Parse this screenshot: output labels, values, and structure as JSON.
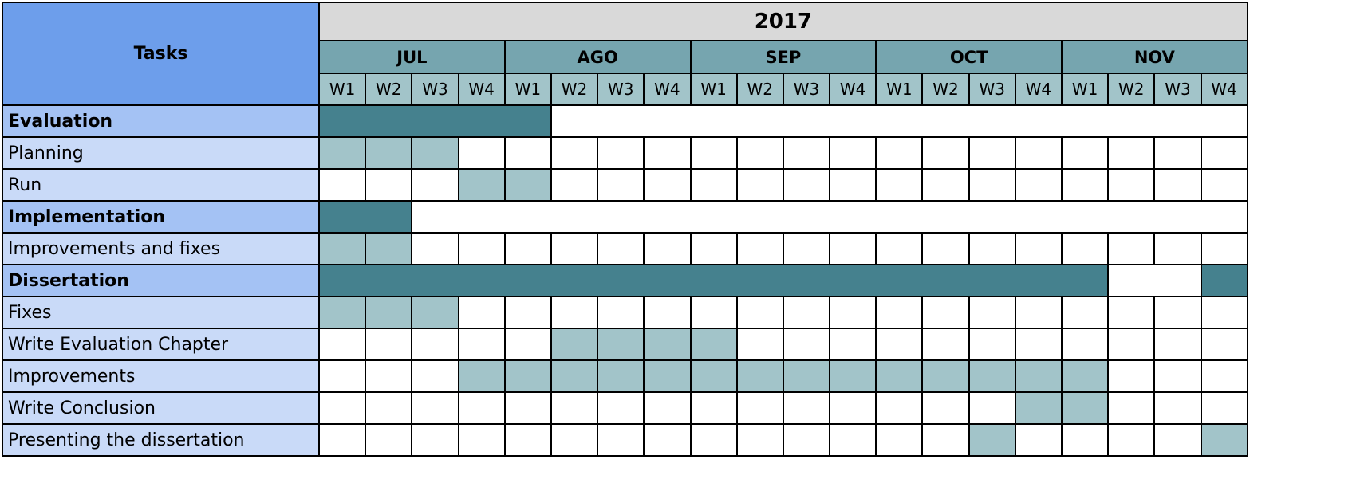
{
  "chart_data": {
    "type": "gantt",
    "tasks_header": "Tasks",
    "year": "2017",
    "months": [
      "JUL",
      "AGO",
      "SEP",
      "OCT",
      "NOV"
    ],
    "weeks": [
      "W1",
      "W2",
      "W3",
      "W4"
    ],
    "colors": {
      "tasks_header": "#6d9eeb",
      "year_header": "#d9d9d9",
      "month_header": "#76a5af",
      "week_header": "#a2c4c9",
      "group_label": "#a4c2f4",
      "task_label": "#c9daf8",
      "group_bar": "#45818e",
      "task_fill": "#a2c4c9"
    },
    "rows": [
      {
        "label": "Evaluation",
        "group": true,
        "spans": [
          {
            "start": "JUL W1",
            "end": "AGO W1"
          }
        ]
      },
      {
        "label": "Planning",
        "group": false,
        "active": [
          "JUL W1",
          "JUL W2",
          "JUL W3"
        ]
      },
      {
        "label": "Run",
        "group": false,
        "active": [
          "JUL W4",
          "AGO W1"
        ]
      },
      {
        "label": "Implementation",
        "group": true,
        "spans": [
          {
            "start": "JUL W1",
            "end": "JUL W2"
          }
        ]
      },
      {
        "label": "Improvements and fixes",
        "group": false,
        "active": [
          "JUL W1",
          "JUL W2"
        ]
      },
      {
        "label": "Dissertation",
        "group": true,
        "spans": [
          {
            "start": "JUL W1",
            "end": "NOV W1"
          },
          {
            "start": "NOV W4",
            "end": "NOV W4"
          }
        ]
      },
      {
        "label": "Fixes",
        "group": false,
        "active": [
          "JUL W1",
          "JUL W2",
          "JUL W3"
        ]
      },
      {
        "label": "Write Evaluation Chapter",
        "group": false,
        "active": [
          "AGO W2",
          "AGO W3",
          "AGO W4",
          "SEP W1"
        ]
      },
      {
        "label": "Improvements",
        "group": false,
        "active": [
          "JUL W4",
          "AGO W1",
          "AGO W2",
          "AGO W3",
          "AGO W4",
          "SEP W1",
          "SEP W2",
          "SEP W3",
          "SEP W4",
          "OCT W1",
          "OCT W2",
          "OCT W3",
          "OCT W4",
          "NOV W1"
        ]
      },
      {
        "label": "Write Conclusion",
        "group": false,
        "active": [
          "OCT W4",
          "NOV W1"
        ]
      },
      {
        "label": "Presenting the dissertation",
        "group": false,
        "active": [
          "OCT W3",
          "NOV W4"
        ]
      }
    ]
  }
}
